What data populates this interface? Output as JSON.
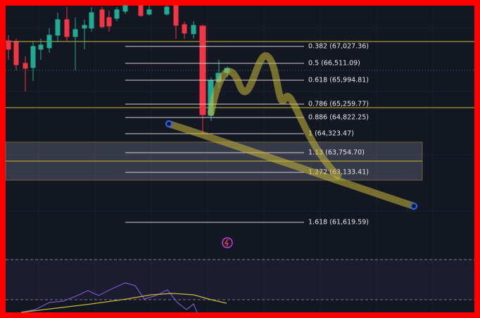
{
  "fib_levels": [
    {
      "label": "0.382 (67,027.36)"
    },
    {
      "label": "0.5 (66,511.09)"
    },
    {
      "label": "0.618 (65,994.81)"
    },
    {
      "label": "0.786 (65,259.77)"
    },
    {
      "label": "0.886 (64,822.25)"
    },
    {
      "label": "1 (64,323.47)"
    },
    {
      "label": "1.13 (63,754.70)"
    },
    {
      "label": "1.272 (63,133.41)"
    },
    {
      "label": "1.618 (61,619.59)"
    }
  ]
}
